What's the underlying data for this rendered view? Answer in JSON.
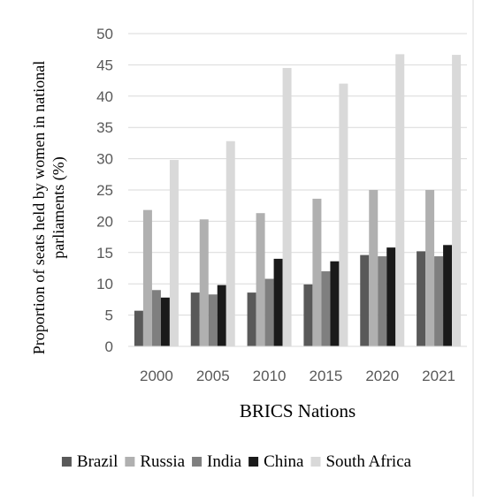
{
  "chart_data": {
    "type": "bar",
    "categories": [
      "2000",
      "2005",
      "2010",
      "2015",
      "2020",
      "2021"
    ],
    "series": [
      {
        "name": "Brazil",
        "color": "#595959",
        "values": [
          5.7,
          8.6,
          8.6,
          9.9,
          14.6,
          15.2
        ]
      },
      {
        "name": "Russia",
        "color": "#b0b0b0",
        "values": [
          21.8,
          20.3,
          21.3,
          23.6,
          25.0,
          25.0
        ]
      },
      {
        "name": "India",
        "color": "#7f7f7f",
        "values": [
          9.0,
          8.3,
          10.8,
          12.0,
          14.4,
          14.4
        ]
      },
      {
        "name": "China",
        "color": "#1a1a1a",
        "values": [
          7.8,
          9.8,
          14.0,
          13.6,
          15.8,
          16.2
        ]
      },
      {
        "name": "South Africa",
        "color": "#d9d9d9",
        "values": [
          29.8,
          32.8,
          44.5,
          42.0,
          46.7,
          46.6
        ]
      }
    ],
    "xlabel": "BRICS Nations",
    "ylabel": "Proportion of seats held by women in national parliaments (%)",
    "ylim": [
      0,
      50
    ],
    "yticks": [
      0,
      5,
      10,
      15,
      20,
      25,
      30,
      35,
      40,
      45,
      50
    ],
    "grid": true,
    "legend_position": "bottom"
  }
}
